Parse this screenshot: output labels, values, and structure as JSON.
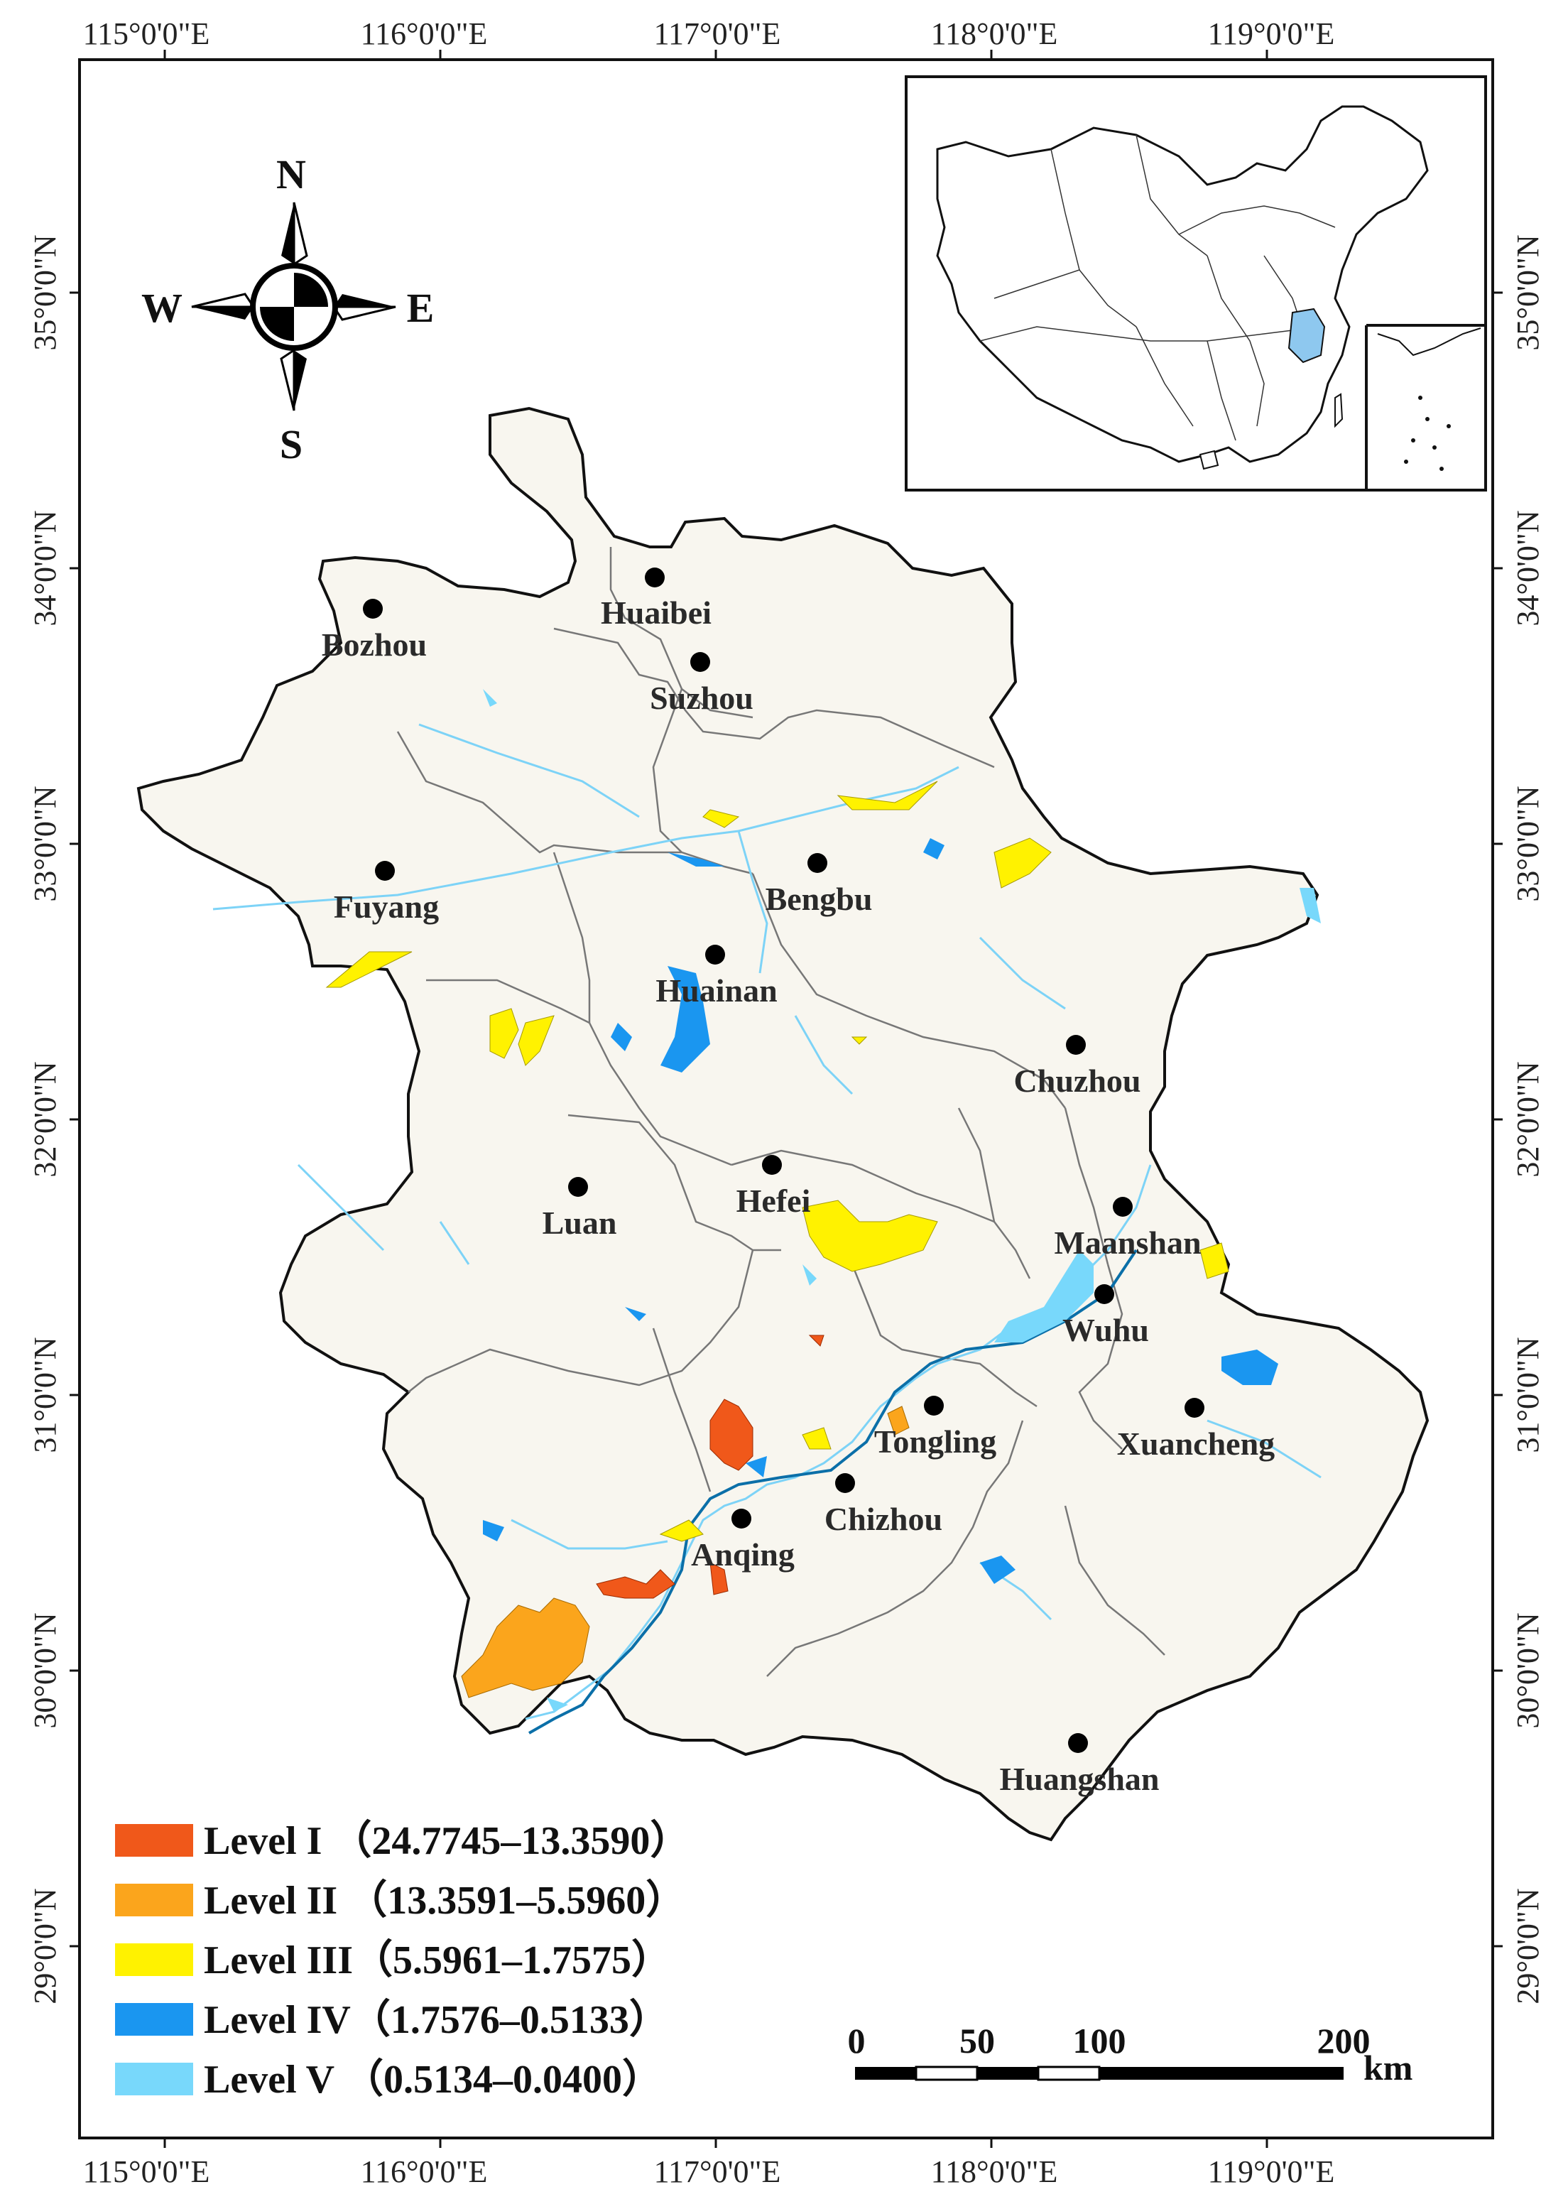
{
  "graticule": {
    "lon_labels": [
      "115°0'0\"E",
      "116°0'0\"E",
      "117°0'0\"E",
      "118°0'0\"E",
      "119°0'0\"E"
    ],
    "lat_labels": [
      "35°0'0\"N",
      "34°0'0\"N",
      "33°0'0\"N",
      "32°0'0\"N",
      "31°0'0\"N",
      "30°0'0\"N",
      "29°0'0\"N"
    ]
  },
  "compass": {
    "north": "N",
    "south": "S",
    "east": "E",
    "west": "W"
  },
  "cities": [
    {
      "name": "Bozhou"
    },
    {
      "name": "Huaibei"
    },
    {
      "name": "Suzhou"
    },
    {
      "name": "Fuyang"
    },
    {
      "name": "Bengbu"
    },
    {
      "name": "Huainan"
    },
    {
      "name": "Chuzhou"
    },
    {
      "name": "Luan"
    },
    {
      "name": "Hefei"
    },
    {
      "name": "Maanshan"
    },
    {
      "name": "Wuhu"
    },
    {
      "name": "Tongling"
    },
    {
      "name": "Xuancheng"
    },
    {
      "name": "Chizhou"
    },
    {
      "name": "Anqing"
    },
    {
      "name": "Huangshan"
    }
  ],
  "legend": [
    {
      "label": "Level I （24.7745–13.3590）",
      "color": "#f0581a"
    },
    {
      "label": "Level II （13.3591–5.5960）",
      "color": "#fba51c"
    },
    {
      "label": "Level III（5.5961–1.7575）",
      "color": "#fff200"
    },
    {
      "label": "Level IV（1.7576–0.5133）",
      "color": "#1a96f0"
    },
    {
      "label": "Level V （0.5134–0.0400）",
      "color": "#78d8fb"
    }
  ],
  "scale_bar": {
    "ticks": [
      "0",
      "50",
      "100",
      "200"
    ],
    "unit": "km"
  },
  "colors": {
    "province_fill": "#f8f6ef",
    "inset_highlight": "#8ec8ef",
    "river": "#7dd3f7"
  }
}
